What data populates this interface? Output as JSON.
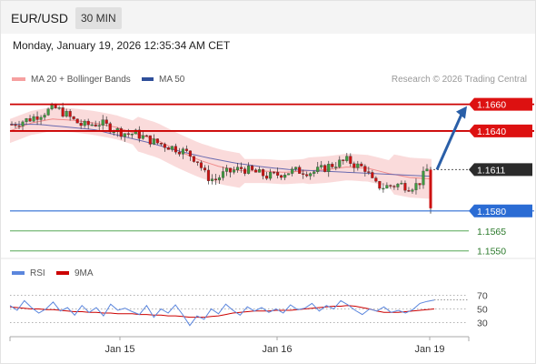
{
  "header": {
    "symbol": "EUR/USD",
    "interval": "30 MIN",
    "datetime": "Monday, January 19, 2026 12:35:34 AM CET"
  },
  "legend": {
    "ma20": "MA 20 + Bollinger Bands",
    "ma50": "MA 50",
    "credit": "Research © 2026 Trading Central",
    "rsi": "RSI",
    "rsi_ma": "9MA"
  },
  "colors": {
    "up": "#3f9a3f",
    "down": "#cc1111",
    "bollinger": "#f6b8b8",
    "ma50": "#6b6bb0",
    "resistance": "#cc0000",
    "pivot": "#2b6cd4",
    "support": "#56a856",
    "arrow": "#2a5fa8",
    "current": "#333333",
    "rsi": "#5b86dd",
    "rsi_ma": "#cc0000"
  },
  "chart_data": [
    {
      "type": "candlestick",
      "title": "",
      "ylim": [
        1.1543,
        1.167
      ],
      "x_ticks": [
        "Jan 15",
        "Jan 16",
        "Jan 19"
      ],
      "close_path": [
        1.1645,
        1.1647,
        1.1649,
        1.1652,
        1.1655,
        1.1657,
        1.1653,
        1.1648,
        1.1644,
        1.1645,
        1.1646,
        1.1643,
        1.164,
        1.1638,
        1.1638,
        1.1635,
        1.1632,
        1.163,
        1.1628,
        1.1626,
        1.1623,
        1.1618,
        1.1606,
        1.1603,
        1.1608,
        1.161,
        1.1612,
        1.161,
        1.1608,
        1.1606,
        1.1607,
        1.1609,
        1.161,
        1.161,
        1.1609,
        1.1611,
        1.1614,
        1.1616,
        1.1618,
        1.1614,
        1.1612,
        1.16,
        1.1598,
        1.1599,
        1.16,
        1.1598,
        1.16,
        1.1611
      ],
      "last_price": 1.1611,
      "ma20_path": [
        1.164,
        1.1646,
        1.1649,
        1.1648,
        1.1646,
        1.1643,
        1.1638,
        1.1633,
        1.1625,
        1.1618,
        1.1613,
        1.161,
        1.161,
        1.1609,
        1.161,
        1.1611,
        1.1613,
        1.1612,
        1.1608,
        1.1605,
        1.1604
      ],
      "ma50_path": [
        1.1645,
        1.1645,
        1.1643,
        1.1641,
        1.1636,
        1.1631,
        1.1625,
        1.162,
        1.1616,
        1.1613,
        1.1611,
        1.161,
        1.1609,
        1.1608,
        1.1607,
        1.1606
      ],
      "levels": [
        {
          "label": "1.1660",
          "value": 1.166,
          "kind": "resistance"
        },
        {
          "label": "1.1640",
          "value": 1.164,
          "kind": "resistance"
        },
        {
          "label": "1.1611",
          "value": 1.1611,
          "kind": "current"
        },
        {
          "label": "1.1580",
          "value": 1.158,
          "kind": "pivot"
        },
        {
          "label": "1.1565",
          "value": 1.1565,
          "kind": "support"
        },
        {
          "label": "1.1550",
          "value": 1.155,
          "kind": "support"
        }
      ],
      "forecast": {
        "direction": "up",
        "target": 1.166
      }
    },
    {
      "type": "line",
      "title": "",
      "ylim": [
        15,
        85
      ],
      "y_ticks": [
        70,
        50,
        30
      ],
      "series": [
        {
          "name": "RSI",
          "values": [
            55,
            48,
            62,
            52,
            44,
            50,
            60,
            47,
            52,
            41,
            55,
            45,
            52,
            40,
            57,
            48,
            51,
            46,
            42,
            55,
            38,
            50,
            44,
            56,
            42,
            26,
            40,
            35,
            50,
            43,
            57,
            48,
            41,
            53,
            47,
            52,
            45,
            50,
            44,
            56,
            49,
            51,
            58,
            47,
            55,
            50,
            62,
            56,
            48,
            42,
            50,
            47,
            53,
            45,
            48,
            44,
            49,
            58,
            61,
            63
          ]
        },
        {
          "name": "9MA",
          "values": [
            53,
            52,
            51,
            50,
            50,
            49,
            49,
            48,
            47,
            46,
            46,
            45,
            45,
            44,
            44,
            43,
            43,
            43,
            42,
            42,
            41,
            41,
            40,
            40,
            39,
            38,
            38,
            38,
            39,
            40,
            42,
            44,
            45,
            46,
            47,
            47,
            47,
            48,
            48,
            48,
            49,
            50,
            51,
            52,
            53,
            54,
            54,
            55,
            54,
            52,
            50,
            47,
            45,
            45,
            45,
            46,
            47,
            48,
            49,
            50
          ]
        }
      ]
    }
  ]
}
